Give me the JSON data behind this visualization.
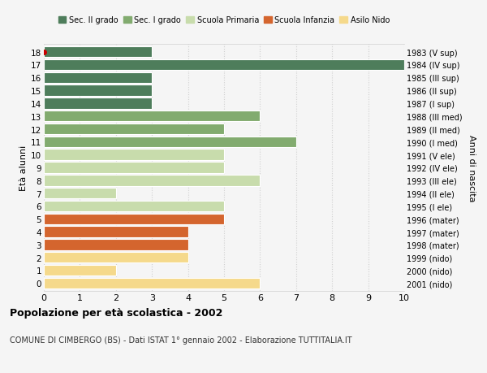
{
  "ages": [
    18,
    17,
    16,
    15,
    14,
    13,
    12,
    11,
    10,
    9,
    8,
    7,
    6,
    5,
    4,
    3,
    2,
    1,
    0
  ],
  "years": [
    "1983 (V sup)",
    "1984 (IV sup)",
    "1985 (III sup)",
    "1986 (II sup)",
    "1987 (I sup)",
    "1988 (III med)",
    "1989 (II med)",
    "1990 (I med)",
    "1991 (V ele)",
    "1992 (IV ele)",
    "1993 (III ele)",
    "1994 (II ele)",
    "1995 (I ele)",
    "1996 (mater)",
    "1997 (mater)",
    "1998 (mater)",
    "1999 (nido)",
    "2000 (nido)",
    "2001 (nido)"
  ],
  "values": [
    3,
    10,
    3,
    3,
    3,
    6,
    5,
    7,
    5,
    5,
    6,
    2,
    5,
    5,
    4,
    4,
    4,
    2,
    6
  ],
  "categories": [
    "Sec. II grado",
    "Sec. II grado",
    "Sec. II grado",
    "Sec. II grado",
    "Sec. II grado",
    "Sec. I grado",
    "Sec. I grado",
    "Sec. I grado",
    "Scuola Primaria",
    "Scuola Primaria",
    "Scuola Primaria",
    "Scuola Primaria",
    "Scuola Primaria",
    "Scuola Infanzia",
    "Scuola Infanzia",
    "Scuola Infanzia",
    "Asilo Nido",
    "Asilo Nido",
    "Asilo Nido"
  ],
  "colors": {
    "Sec. II grado": "#4e7d5b",
    "Sec. I grado": "#82ab6f",
    "Scuola Primaria": "#c8dcac",
    "Scuola Infanzia": "#d4652e",
    "Asilo Nido": "#f5d98b"
  },
  "special_dot_age": 18,
  "special_dot_color": "#cc0000",
  "ylabel_left": "Età alunni",
  "ylabel_right": "Anni di nascita",
  "xlim": [
    0,
    10
  ],
  "xticks": [
    0,
    1,
    2,
    3,
    4,
    5,
    6,
    7,
    8,
    9,
    10
  ],
  "title": "Popolazione per età scolastica - 2002",
  "subtitle": "COMUNE DI CIMBERGO (BS) - Dati ISTAT 1° gennaio 2002 - Elaborazione TUTTITALIA.IT",
  "background_color": "#f5f5f5",
  "bar_edge_color": "#ffffff",
  "grid_color": "#d0d0d0",
  "legend_labels": [
    "Sec. II grado",
    "Sec. I grado",
    "Scuola Primaria",
    "Scuola Infanzia",
    "Asilo Nido"
  ]
}
